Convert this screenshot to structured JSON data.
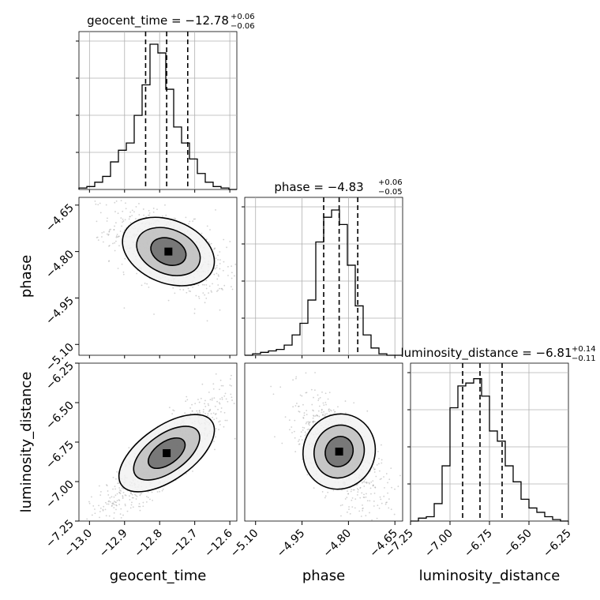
{
  "chart_data": {
    "type": "corner",
    "parameters": [
      "geocent_time",
      "phase",
      "luminosity_distance"
    ],
    "titles": {
      "geocent_time": {
        "prefix": "geocent_time = −12.78",
        "sup": "+0.06",
        "sub": "−0.06"
      },
      "phase": {
        "prefix": "phase = −4.83",
        "sup": "+0.06",
        "sub": "−0.05"
      },
      "luminosity_distance": {
        "prefix": "luminosity_distance = −6.81",
        "sup": "+0.14",
        "sub": "−0.11"
      }
    },
    "axis_labels": {
      "x": [
        "geocent_time",
        "phase",
        "luminosity_distance"
      ],
      "y": [
        "phase",
        "luminosity_distance"
      ]
    },
    "ranges": {
      "geocent_time": [
        -13.03,
        -12.58
      ],
      "phase": [
        -5.135,
        -4.625
      ],
      "luminosity_distance": [
        -7.25,
        -6.25
      ]
    },
    "ticks": {
      "geocent_time": [
        -13.0,
        -12.9,
        -12.8,
        -12.7,
        -12.6
      ],
      "phase": [
        -5.1,
        -4.95,
        -4.8,
        -4.65
      ],
      "luminosity_distance": [
        -7.25,
        -7.0,
        -6.75,
        -6.5,
        -6.25
      ]
    },
    "tick_labels": {
      "geocent_time": [
        "−13.0",
        "−12.9",
        "−12.8",
        "−12.7",
        "−12.6"
      ],
      "phase": [
        "−5.10",
        "−4.95",
        "−4.80",
        "−4.65"
      ],
      "luminosity_distance": [
        "−7.25",
        "−7.00",
        "−6.75",
        "−6.50",
        "−6.25"
      ]
    },
    "quantiles": {
      "geocent_time": [
        -12.84,
        -12.78,
        -12.72
      ],
      "phase": [
        -4.88,
        -4.83,
        -4.77
      ],
      "luminosity_distance": [
        -6.92,
        -6.81,
        -6.67
      ]
    },
    "histograms": {
      "geocent_time": {
        "edges": [
          -13.03,
          -13.0075,
          -12.985,
          -12.9625,
          -12.94,
          -12.9175,
          -12.895,
          -12.8725,
          -12.85,
          -12.8275,
          -12.805,
          -12.7825,
          -12.76,
          -12.7375,
          -12.715,
          -12.6925,
          -12.67,
          -12.6475,
          -12.625,
          -12.6025,
          -12.58
        ],
        "counts": [
          0.01,
          0.02,
          0.05,
          0.09,
          0.19,
          0.27,
          0.32,
          0.51,
          0.72,
          1.0,
          0.94,
          0.69,
          0.43,
          0.32,
          0.21,
          0.11,
          0.05,
          0.02,
          0.01,
          0.0
        ]
      },
      "phase": {
        "edges": [
          -5.135,
          -5.1095,
          -5.084,
          -5.0585,
          -5.033,
          -5.0075,
          -4.982,
          -4.9565,
          -4.931,
          -4.9055,
          -4.88,
          -4.8545,
          -4.829,
          -4.8035,
          -4.778,
          -4.7525,
          -4.727,
          -4.7015,
          -4.676,
          -4.6505,
          -4.625
        ],
        "counts": [
          0.0,
          0.01,
          0.02,
          0.03,
          0.04,
          0.07,
          0.14,
          0.22,
          0.38,
          0.78,
          0.95,
          1.0,
          0.9,
          0.62,
          0.34,
          0.14,
          0.05,
          0.01,
          0.0,
          0.0
        ]
      },
      "luminosity_distance": {
        "edges": [
          -7.25,
          -7.2,
          -7.15,
          -7.1,
          -7.05,
          -7.0,
          -6.95,
          -6.9,
          -6.85,
          -6.8,
          -6.75,
          -6.7,
          -6.65,
          -6.6,
          -6.55,
          -6.5,
          -6.45,
          -6.4,
          -6.35,
          -6.3,
          -6.25
        ],
        "counts": [
          0.0,
          0.02,
          0.03,
          0.12,
          0.38,
          0.78,
          0.93,
          0.95,
          0.98,
          0.86,
          0.62,
          0.55,
          0.38,
          0.27,
          0.15,
          0.09,
          0.06,
          0.03,
          0.01,
          0.0
        ]
      }
    },
    "joint_panels": [
      {
        "x": "geocent_time",
        "y": "phase",
        "center": [
          -12.775,
          -4.8
        ],
        "sigma": [
          0.065,
          0.055
        ],
        "rho": -0.55
      },
      {
        "x": "geocent_time",
        "y": "luminosity_distance",
        "center": [
          -12.78,
          -6.82
        ],
        "sigma": [
          0.075,
          0.16
        ],
        "rho": 0.88
      },
      {
        "x": "phase",
        "y": "luminosity_distance",
        "center": [
          -4.83,
          -6.81
        ],
        "sigma": [
          0.055,
          0.14
        ],
        "rho": -0.62
      }
    ],
    "grid": true,
    "colors": {
      "hist": "#000000",
      "quantile": "#000000",
      "scatter": "#9a9a9a",
      "grid": "#b0b0b0"
    }
  }
}
